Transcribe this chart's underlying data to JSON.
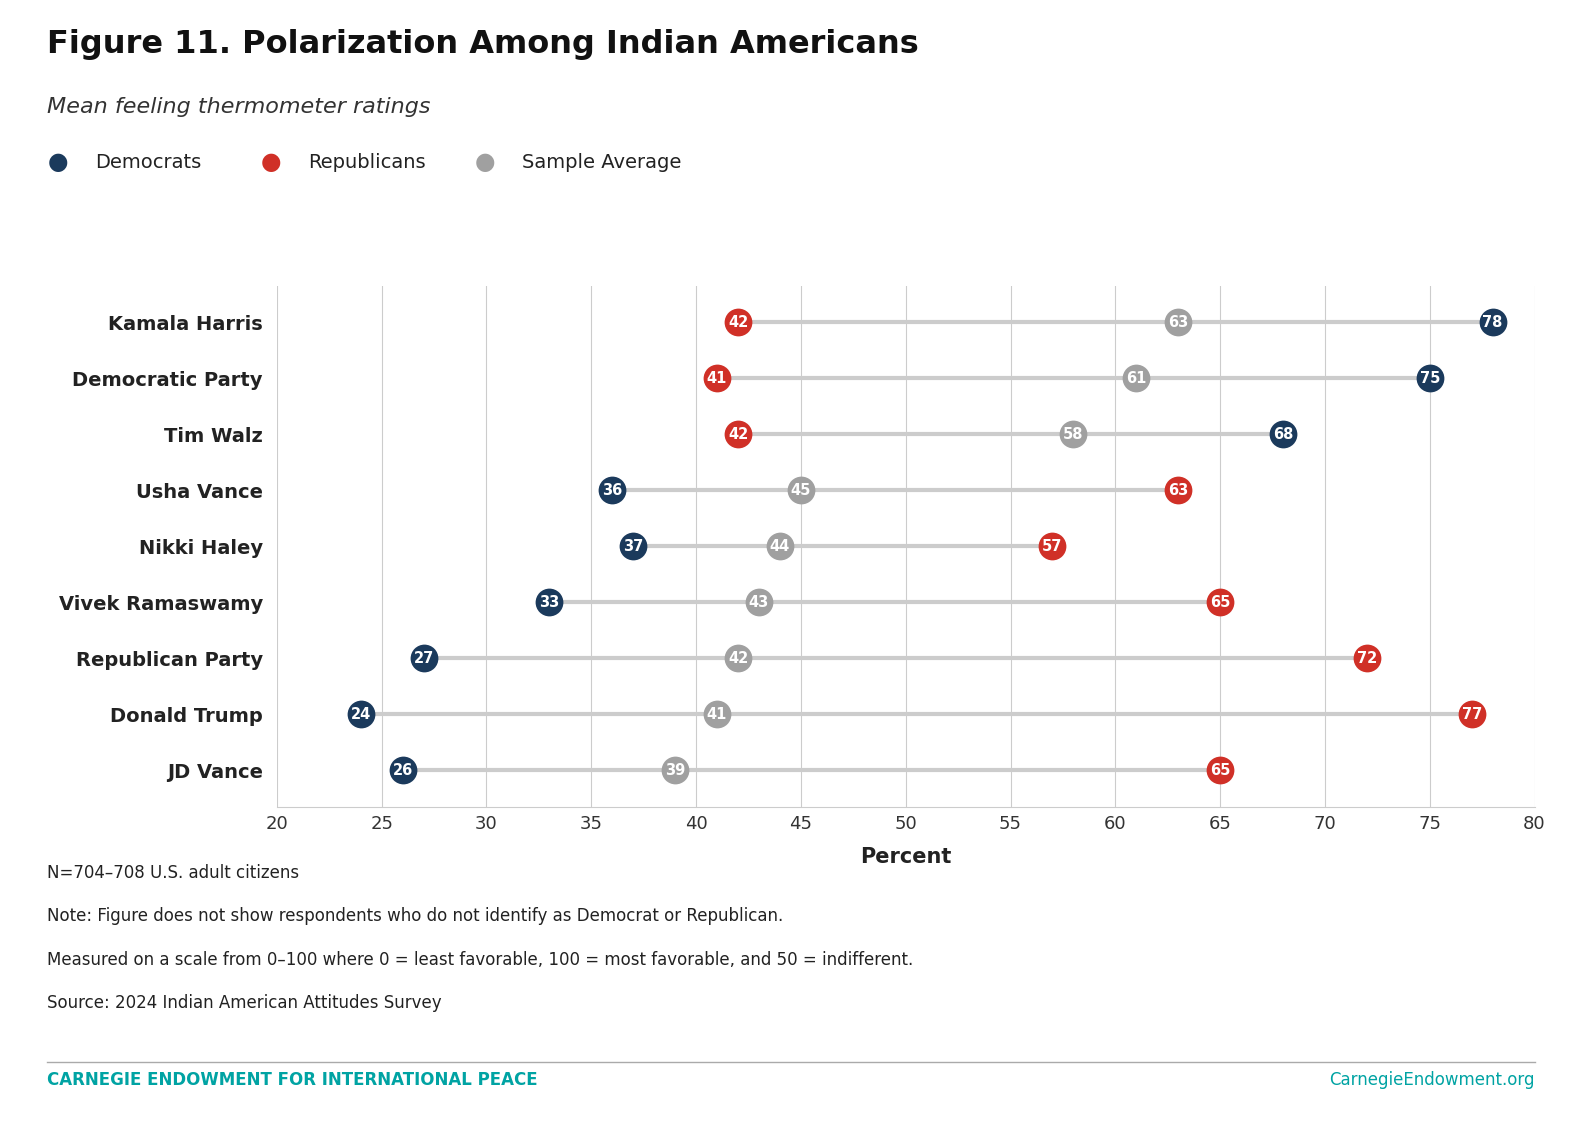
{
  "title": "Figure 11. Polarization Among Indian Americans",
  "subtitle": "Mean feeling thermometer ratings",
  "categories": [
    "Kamala Harris",
    "Democratic Party",
    "Tim Walz",
    "Usha Vance",
    "Nikki Haley",
    "Vivek Ramaswamy",
    "Republican Party",
    "Donald Trump",
    "JD Vance"
  ],
  "democrats": [
    78,
    75,
    68,
    36,
    37,
    33,
    27,
    24,
    26
  ],
  "republicans": [
    42,
    41,
    42,
    63,
    57,
    65,
    72,
    77,
    65
  ],
  "sample_avg": [
    63,
    61,
    58,
    45,
    44,
    43,
    42,
    41,
    39
  ],
  "dem_color": "#1b3a5c",
  "rep_color": "#d03027",
  "avg_color": "#a0a0a0",
  "xlim": [
    20,
    80
  ],
  "xticks": [
    20,
    25,
    30,
    35,
    40,
    45,
    50,
    55,
    60,
    65,
    70,
    75,
    80
  ],
  "xlabel": "Percent",
  "legend_labels": [
    "Democrats",
    "Republicans",
    "Sample Average"
  ],
  "note_lines": [
    "N=704–708 U.S. adult citizens",
    "Note: Figure does not show respondents who do not identify as Democrat or Republican.",
    "Measured on a scale from 0–100 where 0 = least favorable, 100 = most favorable, and 50 = indifferent.",
    "Source: 2024 Indian American Attitudes Survey"
  ],
  "footer_left": "CARNEGIE ENDOWMENT FOR INTERNATIONAL PEACE",
  "footer_right": "CarnegieEndowment.org",
  "footer_color": "#00a3a3",
  "marker_size": 20,
  "background_color": "#ffffff"
}
